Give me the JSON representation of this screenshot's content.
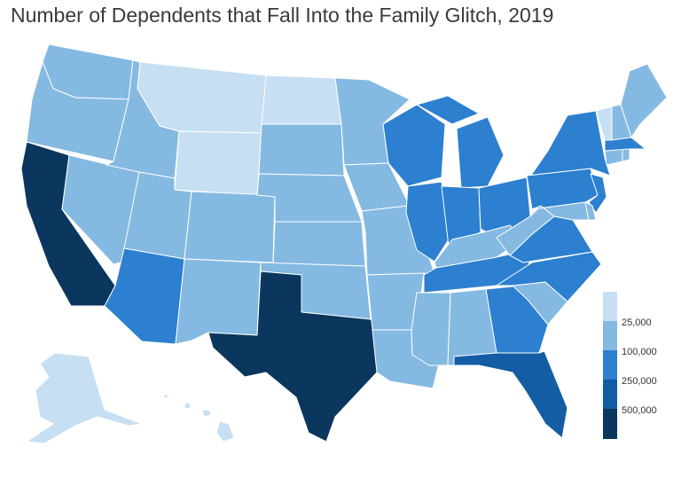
{
  "title": "Number of Dependents that Fall Into the Family Glitch, 2019",
  "palette": [
    "#c6dff2",
    "#84b9e2",
    "#2d7fd0",
    "#145ca3",
    "#0b365d"
  ],
  "legend": {
    "labels": [
      "25,000",
      "100,000",
      "250,000",
      "500,000"
    ]
  },
  "regions": [
    {
      "name": "washington",
      "cls": 1
    },
    {
      "name": "oregon",
      "cls": 1
    },
    {
      "name": "california",
      "cls": 4
    },
    {
      "name": "nevada",
      "cls": 1
    },
    {
      "name": "idaho",
      "cls": 1
    },
    {
      "name": "montana",
      "cls": 0
    },
    {
      "name": "wyoming",
      "cls": 0
    },
    {
      "name": "utah",
      "cls": 1
    },
    {
      "name": "arizona",
      "cls": 2
    },
    {
      "name": "colorado",
      "cls": 1
    },
    {
      "name": "new-mexico",
      "cls": 1
    },
    {
      "name": "north-dakota",
      "cls": 0
    },
    {
      "name": "south-dakota",
      "cls": 1
    },
    {
      "name": "nebraska",
      "cls": 1
    },
    {
      "name": "kansas",
      "cls": 1
    },
    {
      "name": "oklahoma",
      "cls": 1
    },
    {
      "name": "texas",
      "cls": 4
    },
    {
      "name": "minnesota",
      "cls": 1
    },
    {
      "name": "iowa",
      "cls": 1
    },
    {
      "name": "missouri",
      "cls": 1
    },
    {
      "name": "arkansas",
      "cls": 1
    },
    {
      "name": "louisiana",
      "cls": 1
    },
    {
      "name": "wisconsin",
      "cls": 2
    },
    {
      "name": "illinois",
      "cls": 2
    },
    {
      "name": "michigan",
      "cls": 2
    },
    {
      "name": "indiana",
      "cls": 2
    },
    {
      "name": "ohio",
      "cls": 2
    },
    {
      "name": "kentucky",
      "cls": 1
    },
    {
      "name": "tennessee",
      "cls": 2
    },
    {
      "name": "mississippi",
      "cls": 1
    },
    {
      "name": "alabama",
      "cls": 1
    },
    {
      "name": "georgia",
      "cls": 2
    },
    {
      "name": "florida",
      "cls": 3
    },
    {
      "name": "south-carolina",
      "cls": 1
    },
    {
      "name": "north-carolina",
      "cls": 2
    },
    {
      "name": "virginia",
      "cls": 2
    },
    {
      "name": "west-virginia",
      "cls": 1
    },
    {
      "name": "pennsylvania",
      "cls": 2
    },
    {
      "name": "new-york",
      "cls": 2
    },
    {
      "name": "new-jersey",
      "cls": 2
    },
    {
      "name": "maryland",
      "cls": 1
    },
    {
      "name": "delaware",
      "cls": 1
    },
    {
      "name": "connecticut",
      "cls": 1
    },
    {
      "name": "rhode-island",
      "cls": 1
    },
    {
      "name": "massachusetts",
      "cls": 2
    },
    {
      "name": "vermont",
      "cls": 0
    },
    {
      "name": "new-hampshire",
      "cls": 1
    },
    {
      "name": "maine",
      "cls": 1
    },
    {
      "name": "alaska",
      "cls": 0
    },
    {
      "name": "hawaii",
      "cls": 0
    }
  ]
}
